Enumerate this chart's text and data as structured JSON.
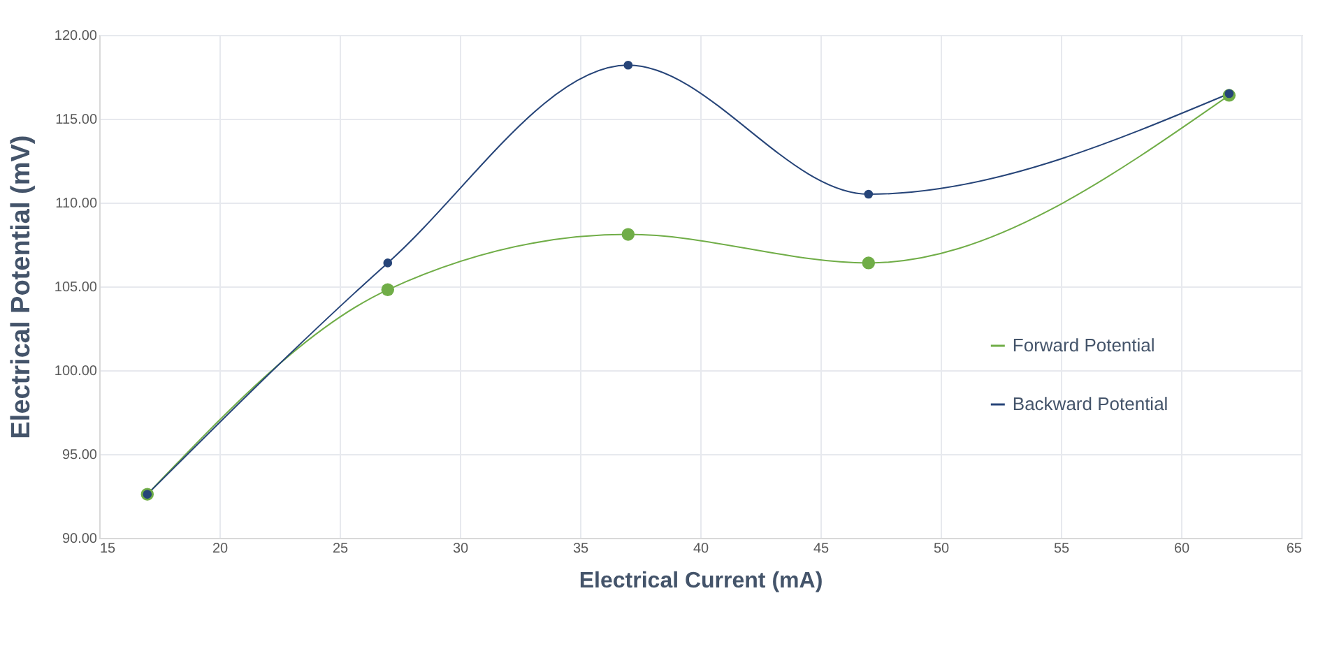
{
  "chart_data": {
    "type": "line",
    "xlabel": "Electrical Current (mA)",
    "ylabel": "Electrical Potential (mV)",
    "x": [
      17,
      27,
      37,
      47,
      62
    ],
    "series": [
      {
        "name": "Forward Potential",
        "color": "#70ad47",
        "values": [
          92.6,
          104.8,
          108.1,
          106.4,
          116.4
        ]
      },
      {
        "name": "Backward Potential",
        "color": "#264478",
        "values": [
          92.6,
          106.4,
          118.2,
          110.5,
          116.5
        ]
      }
    ],
    "xlim": [
      15,
      65
    ],
    "xticks": [
      15,
      20,
      25,
      30,
      35,
      40,
      45,
      50,
      55,
      60,
      65
    ],
    "ylim": [
      90,
      120
    ],
    "yticks": [
      {
        "value": 90,
        "label": "90.00"
      },
      {
        "value": 95,
        "label": "95.00"
      },
      {
        "value": 100,
        "label": "100.00"
      },
      {
        "value": 105,
        "label": "105.00"
      },
      {
        "value": 110,
        "label": "110.00"
      },
      {
        "value": 115,
        "label": "115.00"
      },
      {
        "value": 120,
        "label": "120.00"
      }
    ],
    "grid": true,
    "legend": "right",
    "marker": "circle",
    "line_style": "solid"
  }
}
